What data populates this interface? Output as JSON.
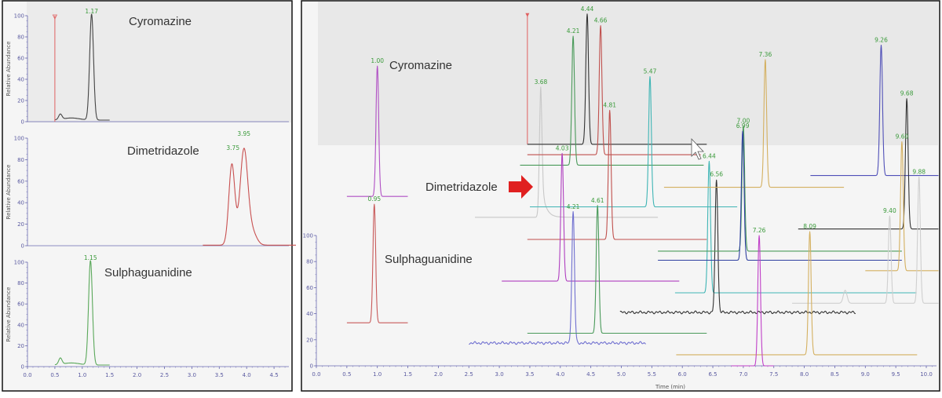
{
  "chart_data": [
    {
      "type": "line",
      "title": "",
      "ylabel": "Relative Abundance",
      "xlim": [
        0.0,
        4.9
      ],
      "ylim": [
        0,
        100
      ],
      "xticks": [
        "0.0",
        "0.5",
        "1.0",
        "1.5",
        "2.0",
        "2.5",
        "3.0",
        "3.5",
        "4.0",
        "4.5"
      ],
      "yticks": [
        "0",
        "20",
        "40",
        "60",
        "80",
        "100"
      ],
      "panels": [
        {
          "compound": "Cyromazine",
          "color": "#444444",
          "marker_rt": 0.5,
          "x_range": [
            0.5,
            1.5
          ],
          "peaks": [
            {
              "rt": 1.17,
              "height": 100,
              "label": "1.17"
            }
          ],
          "minor_peaks": [
            {
              "rt": 0.6,
              "height": 5
            }
          ]
        },
        {
          "compound": "Dimetridazole",
          "color": "#c85050",
          "x_range": [
            3.2,
            4.9
          ],
          "peaks": [
            {
              "rt": 3.75,
              "height": 87,
              "label": "3.75"
            },
            {
              "rt": 3.95,
              "height": 100,
              "label": "3.95"
            }
          ],
          "minor_peaks": []
        },
        {
          "compound": "Sulphaguanidine",
          "color": "#5aa85a",
          "x_range": [
            0.5,
            1.5
          ],
          "peaks": [
            {
              "rt": 1.15,
              "height": 100,
              "label": "1.15"
            }
          ],
          "minor_peaks": [
            {
              "rt": 0.6,
              "height": 6
            }
          ]
        }
      ]
    },
    {
      "type": "line",
      "title": "",
      "xlabel": "Time (min)",
      "xlim": [
        0.0,
        10.2
      ],
      "ylim": [
        0,
        100
      ],
      "xticks": [
        "0.0",
        "0.5",
        "1.0",
        "1.5",
        "2.0",
        "2.5",
        "3.0",
        "3.5",
        "4.0",
        "4.5",
        "5.0",
        "5.5",
        "6.0",
        "6.5",
        "7.0",
        "7.5",
        "8.0",
        "8.5",
        "9.0",
        "9.5",
        "10.0"
      ],
      "yticks": [
        "0",
        "20",
        "40",
        "60",
        "80",
        "100"
      ],
      "annotations": {
        "cyromazine": "Cyromazine",
        "dimetridazole": "Dimetridazole",
        "sulphaguanidine": "Sulphaguanidine"
      },
      "arrow_color": "#e02020",
      "marker": {
        "rt": 3.46,
        "from": 170,
        "to": 270,
        "color": "#e06060"
      },
      "traces": [
        {
          "color": "#b04fc4",
          "x_range": [
            0.5,
            1.5
          ],
          "baseline": 130,
          "peaks": [
            {
              "rt": 1.0,
              "apex": 230,
              "label": "1.00"
            }
          ]
        },
        {
          "color": "#c85a5a",
          "x_range": [
            0.5,
            1.5
          ],
          "baseline": 33,
          "peaks": [
            {
              "rt": 0.95,
              "apex": 124,
              "label": "0.95"
            }
          ]
        },
        {
          "color": "#c8c8c8",
          "x_range": [
            2.6,
            5.6
          ],
          "baseline": 114,
          "tail": true,
          "peaks": [
            {
              "rt": 3.68,
              "apex": 214,
              "label": "3.68"
            }
          ]
        },
        {
          "color": "#333333",
          "x_range": [
            3.46,
            6.4
          ],
          "baseline": 170,
          "peaks": [
            {
              "rt": 4.44,
              "apex": 270,
              "label": "4.44"
            }
          ]
        },
        {
          "color": "#c0504d",
          "x_range": [
            3.46,
            6.3
          ],
          "baseline": 162,
          "peaks": [
            {
              "rt": 4.66,
              "apex": 261,
              "label": "4.66"
            }
          ]
        },
        {
          "color": "#4a9a5a",
          "x_range": [
            3.34,
            6.35
          ],
          "baseline": 154,
          "peaks": [
            {
              "rt": 4.21,
              "apex": 253,
              "label": "4.21"
            }
          ]
        },
        {
          "color": "#3fb5b5",
          "x_range": [
            3.5,
            6.9
          ],
          "baseline": 122,
          "peaks": [
            {
              "rt": 5.47,
              "apex": 222,
              "label": "5.47"
            }
          ]
        },
        {
          "color": "#c0504d",
          "x_range": [
            3.46,
            6.4
          ],
          "baseline": 97,
          "peaks": [
            {
              "rt": 4.81,
              "apex": 196,
              "label": "4.81"
            }
          ]
        },
        {
          "color": "#b040c0",
          "x_range": [
            3.04,
            5.95
          ],
          "baseline": 65,
          "peaks": [
            {
              "rt": 4.03,
              "apex": 163,
              "label": "4.03"
            }
          ]
        },
        {
          "color": "#7070d0",
          "x_range": [
            2.5,
            5.4
          ],
          "baseline": 17.5,
          "noise": true,
          "peaks": [
            {
              "rt": 4.21,
              "apex": 118,
              "label": "4.21"
            }
          ]
        },
        {
          "color": "#4a9a5a",
          "x_range": [
            3.46,
            6.4
          ],
          "baseline": 25,
          "peaks": [
            {
              "rt": 4.61,
              "apex": 123,
              "label": "4.61"
            }
          ]
        },
        {
          "color": "#3fb5b5",
          "x_range": [
            5.88,
            9.84
          ],
          "baseline": 56,
          "peaks": [
            {
              "rt": 6.44,
              "apex": 157,
              "label": "6.44"
            }
          ]
        },
        {
          "color": "#333333",
          "x_range": [
            4.98,
            8.84
          ],
          "baseline": 41,
          "noise": true,
          "peaks": [
            {
              "rt": 6.56,
              "apex": 143,
              "label": "6.56"
            }
          ]
        },
        {
          "color": "#d4b060",
          "x_range": [
            5.7,
            8.65
          ],
          "baseline": 137,
          "peaks": [
            {
              "rt": 7.36,
              "apex": 235,
              "label": "7.36"
            }
          ]
        },
        {
          "color": "#4a9a5a",
          "x_range": [
            5.6,
            9.6
          ],
          "baseline": 88,
          "peaks": [
            {
              "rt": 7.0,
              "apex": 184,
              "label": "7.00"
            }
          ]
        },
        {
          "color": "#3040a0",
          "x_range": [
            5.6,
            9.6
          ],
          "baseline": 81,
          "peaks": [
            {
              "rt": 6.99,
              "apex": 180,
              "label": "6.99"
            }
          ]
        },
        {
          "color": "#5050b8",
          "x_range": [
            8.1,
            10.2
          ],
          "baseline": 146,
          "peaks": [
            {
              "rt": 9.26,
              "apex": 246,
              "label": "9.26"
            }
          ]
        },
        {
          "color": "#333333",
          "x_range": [
            7.9,
            10.2
          ],
          "baseline": 105,
          "peaks": [
            {
              "rt": 9.68,
              "apex": 205,
              "label": "9.68"
            }
          ]
        },
        {
          "color": "#d4b060",
          "x_range": [
            9.0,
            10.2
          ],
          "baseline": 73,
          "peaks": [
            {
              "rt": 9.6,
              "apex": 172,
              "label": "9.60"
            }
          ]
        },
        {
          "color": "#cfcfcf",
          "x_range": [
            7.8,
            10.2
          ],
          "baseline": 48,
          "peaks": [
            {
              "rt": 9.4,
              "apex": 115,
              "label": "9.40"
            },
            {
              "rt": 9.88,
              "apex": 145,
              "label": "9.88"
            },
            {
              "rt": 8.67,
              "apex": 58,
              "label": ""
            }
          ]
        },
        {
          "color": "#d4b060",
          "x_range": [
            5.9,
            9.85
          ],
          "baseline": 8.5,
          "peaks": [
            {
              "rt": 8.09,
              "apex": 103,
              "label": "8.09"
            }
          ]
        },
        {
          "color": "#c040c8",
          "x_range": [
            6.8,
            7.5
          ],
          "baseline": 0,
          "peaks": [
            {
              "rt": 7.26,
              "apex": 100,
              "label": "7.26"
            }
          ]
        }
      ]
    }
  ]
}
